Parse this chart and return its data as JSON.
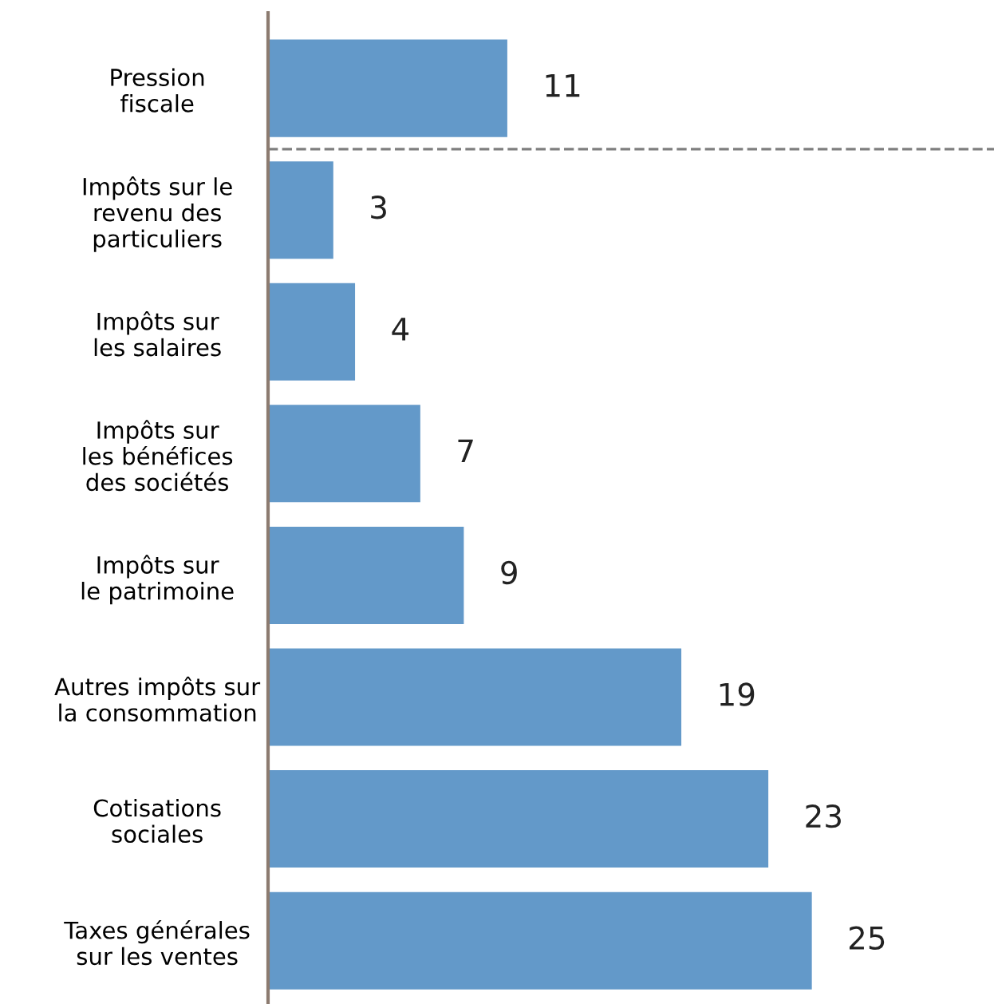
{
  "chart_data": {
    "type": "bar",
    "orientation": "horizontal",
    "categories": [
      "Pression\nfiscale",
      "Impôts sur le\nrevenu des\nparticuliers",
      "Impôts sur\nles salaires",
      "Impôts sur\nles bénéfices\ndes sociétés",
      "Impôts sur\nle patrimoine",
      "Autres impôts sur\nla consommation",
      "Cotisations\nsociales",
      "Taxes générales\nsur les ventes"
    ],
    "values": [
      11,
      3,
      4,
      7,
      9,
      19,
      23,
      25
    ],
    "color": "#6399c9",
    "data_labels": true,
    "grid": false,
    "legend": false
  }
}
